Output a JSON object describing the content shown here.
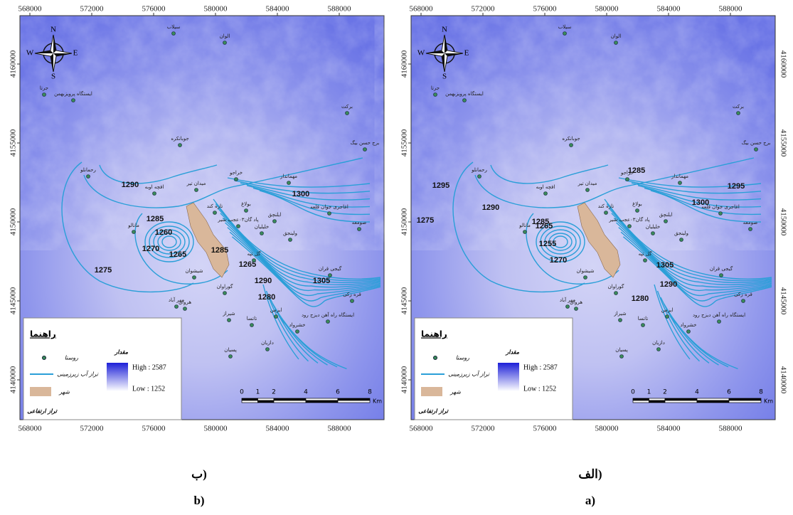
{
  "map": {
    "x_ticks": [
      568000,
      572000,
      576000,
      580000,
      584000,
      588000
    ],
    "y_ticks": [
      4160000,
      4155000,
      4150000,
      4145000,
      4140000
    ],
    "compass": [
      "N",
      "E",
      "S",
      "W"
    ],
    "villages": [
      "سیلاب",
      "الوان",
      "جرتا",
      "ایستگاه پرویزبهمن",
      "برکت",
      "برج حسن بیگ",
      "جوبانکره",
      "رحمانلو",
      "خراجو",
      "مهماندار",
      "افچه اوبه",
      "میدان تیر",
      "اغاجری جوان قلعه",
      "بولاغ",
      "تازه کند",
      "صومعه",
      "ایلنچق",
      "خلیلیان",
      "ولینجق",
      "مانالو",
      "گل تپه",
      "گیجی قران",
      "شیشوان",
      "گوراوان",
      "قره زکی",
      "هروان",
      "مهر آباد",
      "ایستگاه راه آهن دیزج رود",
      "شیراز",
      "تاتسا",
      "ایزمن",
      "خشرواد",
      "دازیان",
      "پسیان",
      "پاد گان۰۳عجب شیر"
    ],
    "legend": {
      "title": "راهنما",
      "village": "روستا",
      "contour": "تراز آب زیرزمینی",
      "city": "شهر",
      "elevation": "تراز ارتفاعی",
      "value": "مقدار",
      "high": "High : 2587",
      "low": "Low : 1252"
    },
    "scale": {
      "ticks": [
        0,
        1,
        2,
        4,
        6,
        8
      ],
      "unit": "Km"
    }
  },
  "panels": [
    {
      "caption_fa": "ب)",
      "caption_en": "b)",
      "contour_labels": [
        1290,
        1285,
        1260,
        1270,
        1265,
        1285,
        1275,
        1300,
        1265,
        1290,
        1280,
        1305
      ]
    },
    {
      "caption_fa": "الف)",
      "caption_en": "a)",
      "contour_labels": [
        1295,
        1290,
        1285,
        1275,
        1265,
        1255,
        1270,
        1285,
        1295,
        1300,
        1305,
        1290,
        1280
      ]
    }
  ]
}
